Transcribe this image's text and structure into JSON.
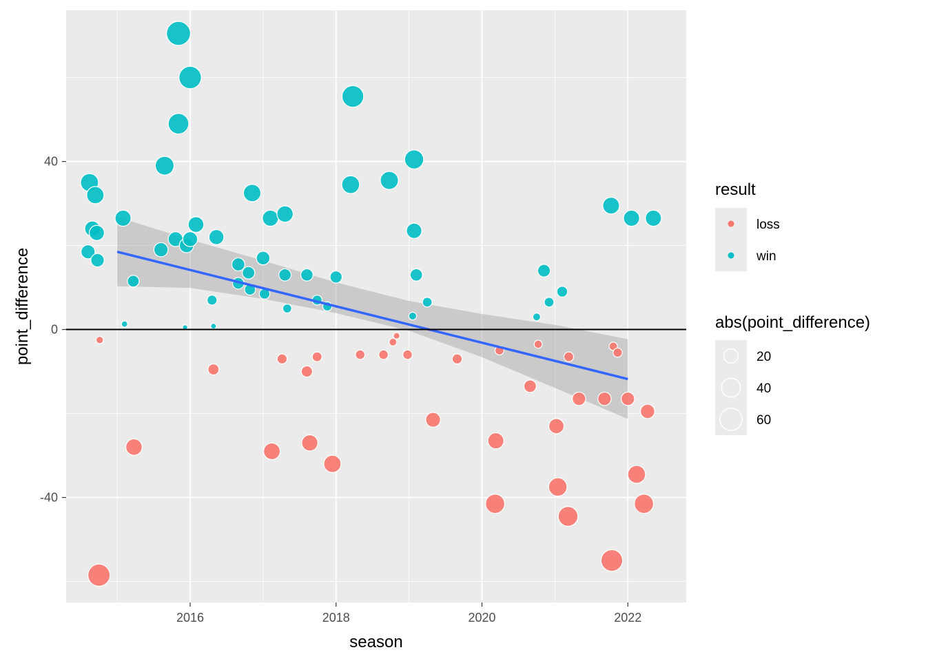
{
  "chart_data": {
    "type": "scatter",
    "xlabel": "season",
    "ylabel": "point_difference",
    "xlim": [
      2014.3,
      2022.8
    ],
    "ylim": [
      -65,
      76
    ],
    "x_ticks": [
      2016,
      2018,
      2020,
      2022
    ],
    "x_tick_labels": [
      "2016",
      "2018",
      "2020",
      "2022"
    ],
    "y_ticks": [
      -40,
      0,
      40
    ],
    "y_tick_labels": [
      "-40",
      "0",
      "40"
    ],
    "y_minor_ticks": [
      -60,
      -20,
      20,
      60
    ],
    "x_minor_ticks": [
      2015,
      2017,
      2019,
      2021
    ],
    "hline": 0,
    "colors": {
      "loss": "#F8766D",
      "win": "#00BFC4",
      "panel": "#EBEBEB",
      "grid": "#FFFFFF",
      "trend": "#3366FF",
      "band": "#999999"
    },
    "trend": {
      "x": [
        2015,
        2022
      ],
      "y": [
        18.5,
        -11.8
      ]
    },
    "band": {
      "upper": [
        [
          2015,
          26.8
        ],
        [
          2016,
          21.4
        ],
        [
          2017,
          16.4
        ],
        [
          2018,
          11.2
        ],
        [
          2019,
          6.8
        ],
        [
          2020,
          3.7
        ],
        [
          2021,
          1.1
        ],
        [
          2022,
          -2.3
        ]
      ],
      "lower": [
        [
          2015,
          10.3
        ],
        [
          2016,
          9.9
        ],
        [
          2017,
          7.3
        ],
        [
          2018,
          3.9
        ],
        [
          2019,
          -0.3
        ],
        [
          2020,
          -6.6
        ],
        [
          2021,
          -13.9
        ],
        [
          2022,
          -21.3
        ]
      ]
    },
    "series": [
      {
        "name": "win",
        "points": [
          [
            2014.62,
            35
          ],
          [
            2014.66,
            24
          ],
          [
            2014.7,
            32
          ],
          [
            2014.72,
            23
          ],
          [
            2014.6,
            18.5
          ],
          [
            2014.73,
            16.5
          ],
          [
            2015.08,
            26.5
          ],
          [
            2015.1,
            1.3
          ],
          [
            2015.22,
            11.5
          ],
          [
            2015.6,
            19
          ],
          [
            2015.65,
            39
          ],
          [
            2015.8,
            21.5
          ],
          [
            2015.84,
            70.5
          ],
          [
            2015.84,
            49
          ],
          [
            2015.93,
            0.5
          ],
          [
            2015.95,
            20
          ],
          [
            2016.0,
            60
          ],
          [
            2016.0,
            21.5
          ],
          [
            2016.08,
            25
          ],
          [
            2016.3,
            7
          ],
          [
            2016.32,
            0.8
          ],
          [
            2016.36,
            22
          ],
          [
            2016.66,
            15.5
          ],
          [
            2016.66,
            11
          ],
          [
            2016.8,
            13.5
          ],
          [
            2016.82,
            9.5
          ],
          [
            2016.85,
            32.5
          ],
          [
            2017.0,
            17
          ],
          [
            2017.02,
            8.5
          ],
          [
            2017.1,
            26.5
          ],
          [
            2017.3,
            27.5
          ],
          [
            2017.3,
            13
          ],
          [
            2017.33,
            5
          ],
          [
            2017.6,
            13
          ],
          [
            2017.74,
            7
          ],
          [
            2017.88,
            5.5
          ],
          [
            2018.0,
            12.5
          ],
          [
            2018.2,
            34.5
          ],
          [
            2018.23,
            55.5
          ],
          [
            2018.73,
            35.5
          ],
          [
            2019.05,
            3.2
          ],
          [
            2019.07,
            40.5
          ],
          [
            2019.07,
            23.5
          ],
          [
            2019.1,
            13
          ],
          [
            2019.25,
            6.5
          ],
          [
            2020.75,
            3
          ],
          [
            2020.85,
            14
          ],
          [
            2020.92,
            6.5
          ],
          [
            2021.1,
            9
          ],
          [
            2021.77,
            29.5
          ],
          [
            2022.05,
            26.5
          ],
          [
            2022.35,
            26.5
          ]
        ]
      },
      {
        "name": "loss",
        "points": [
          [
            2014.76,
            -2.5
          ],
          [
            2014.75,
            -58.5
          ],
          [
            2015.23,
            -28
          ],
          [
            2016.32,
            -9.5
          ],
          [
            2017.12,
            -29
          ],
          [
            2017.26,
            -7
          ],
          [
            2017.6,
            -10
          ],
          [
            2017.64,
            -27
          ],
          [
            2017.74,
            -6.5
          ],
          [
            2017.95,
            -32
          ],
          [
            2018.33,
            -6
          ],
          [
            2018.65,
            -6
          ],
          [
            2018.78,
            -3
          ],
          [
            2018.83,
            -1.5
          ],
          [
            2018.98,
            -6
          ],
          [
            2019.33,
            -21.5
          ],
          [
            2019.66,
            -7
          ],
          [
            2020.19,
            -26.5
          ],
          [
            2020.24,
            -5
          ],
          [
            2020.18,
            -41.5
          ],
          [
            2020.66,
            -13.5
          ],
          [
            2020.77,
            -3.5
          ],
          [
            2021.02,
            -23
          ],
          [
            2021.04,
            -37.5
          ],
          [
            2021.18,
            -44.5
          ],
          [
            2021.19,
            -6.5
          ],
          [
            2021.33,
            -16.5
          ],
          [
            2021.68,
            -16.5
          ],
          [
            2021.78,
            -55
          ],
          [
            2021.8,
            -4
          ],
          [
            2021.86,
            -5.5
          ],
          [
            2022.0,
            -16.5
          ],
          [
            2022.12,
            -34.5
          ],
          [
            2022.22,
            -41.5
          ],
          [
            2022.27,
            -19.5
          ]
        ]
      }
    ],
    "legend": {
      "color_title": "result",
      "color_entries": [
        "loss",
        "win"
      ],
      "size_title": "abs(point_difference)",
      "size_entries": [
        "20",
        "40",
        "60"
      ],
      "size_values": [
        20,
        40,
        60
      ],
      "placement": "right"
    }
  }
}
